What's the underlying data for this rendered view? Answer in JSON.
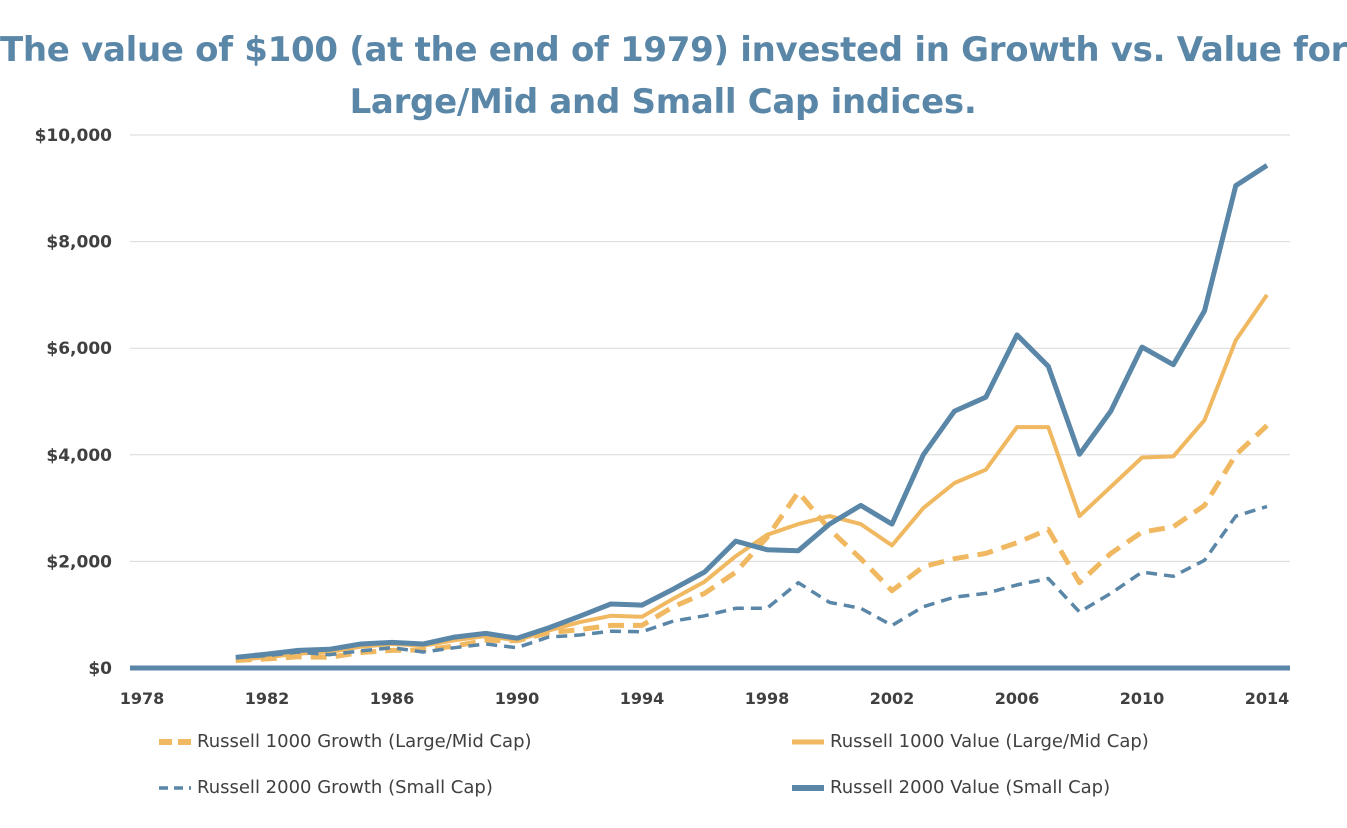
{
  "title": {
    "line1": "The value of $100 (at the end of 1979) invested in Growth vs. Value for",
    "line2": "Large/Mid and Small Cap indices."
  },
  "chart_data": {
    "type": "line",
    "title": "The value of $100 (at the end of 1979) invested in Growth vs. Value for Large/Mid and Small Cap indices.",
    "xlabel": "",
    "ylabel": "",
    "xlim": [
      1978,
      2014
    ],
    "ylim": [
      0,
      10000
    ],
    "x_ticks": [
      1978,
      1982,
      1986,
      1990,
      1994,
      1998,
      2002,
      2006,
      2010,
      2014
    ],
    "y_ticks": [
      0,
      2000,
      4000,
      6000,
      8000,
      10000
    ],
    "y_tick_labels": [
      "$0",
      "$2,000",
      "$4,000",
      "$6,000",
      "$8,000",
      "$10,000"
    ],
    "grid": "horizontal",
    "legend_position": "bottom",
    "x": [
      1981,
      1982,
      1983,
      1984,
      1985,
      1986,
      1987,
      1988,
      1989,
      1990,
      1991,
      1992,
      1993,
      1994,
      1995,
      1996,
      1997,
      1998,
      1999,
      2000,
      2001,
      2002,
      2003,
      2004,
      2005,
      2006,
      2007,
      2008,
      2009,
      2010,
      2011,
      2012,
      2013,
      2014
    ],
    "series": [
      {
        "name": "Russell 1000 Growth (Large/Mid Cap)",
        "color": "#f0b860",
        "style": "thick-dashed",
        "values": [
          140,
          170,
          210,
          200,
          290,
          330,
          340,
          410,
          520,
          510,
          660,
          720,
          800,
          800,
          1150,
          1400,
          1800,
          2450,
          3300,
          2600,
          2050,
          1450,
          1900,
          2050,
          2150,
          2350,
          2600,
          1600,
          2150,
          2550,
          2650,
          3050,
          4000,
          4550
        ]
      },
      {
        "name": "Russell 1000 Value (Large/Mid Cap)",
        "color": "#f0b860",
        "style": "solid",
        "values": [
          150,
          200,
          270,
          300,
          400,
          450,
          420,
          520,
          600,
          520,
          700,
          860,
          980,
          960,
          1300,
          1620,
          2100,
          2500,
          2700,
          2850,
          2700,
          2300,
          3000,
          3470,
          3720,
          4520,
          4520,
          2850,
          3400,
          3950,
          3970,
          4650,
          6150,
          7000
        ]
      },
      {
        "name": "Russell 2000 Growth (Small Cap)",
        "color": "#5a86a8",
        "style": "thin-dashed",
        "values": [
          200,
          230,
          300,
          250,
          320,
          380,
          300,
          380,
          450,
          380,
          580,
          620,
          690,
          680,
          880,
          980,
          1120,
          1120,
          1600,
          1230,
          1120,
          800,
          1150,
          1330,
          1400,
          1560,
          1680,
          1050,
          1400,
          1800,
          1720,
          2020,
          2850,
          3030
        ]
      },
      {
        "name": "Russell 2000 Value (Small Cap)",
        "color": "#5a86a8",
        "style": "thick-solid",
        "values": [
          200,
          260,
          330,
          350,
          450,
          480,
          450,
          580,
          650,
          560,
          750,
          970,
          1200,
          1180,
          1480,
          1800,
          2380,
          2220,
          2200,
          2700,
          3050,
          2700,
          4000,
          4820,
          5080,
          6250,
          5660,
          4010,
          4820,
          6020,
          5690,
          6700,
          9050,
          9430
        ]
      }
    ]
  },
  "legend": {
    "items": [
      {
        "label": "Russell 1000 Growth (Large/Mid Cap)"
      },
      {
        "label": "Russell 1000 Value (Large/Mid Cap)"
      },
      {
        "label": "Russell 2000 Growth (Small Cap)"
      },
      {
        "label": "Russell 2000 Value (Small Cap)"
      }
    ]
  }
}
